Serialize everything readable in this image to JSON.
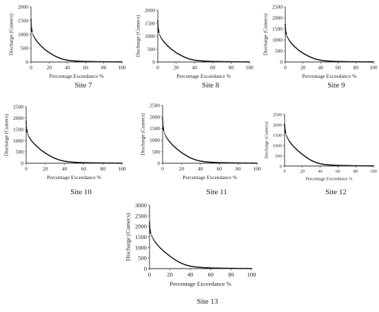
{
  "chart_data": [
    {
      "type": "line",
      "caption": "Site 7",
      "xlabel": "Percentage Exceedance %",
      "ylabel": "Discharge (Cumecs)",
      "xlim": [
        0,
        100
      ],
      "ylim": [
        0,
        2000
      ],
      "xticks": [
        0,
        20,
        40,
        60,
        80,
        100
      ],
      "yticks": [
        0,
        500,
        1000,
        1500,
        2000
      ],
      "series": [
        {
          "color": "#111111",
          "x": [
            0,
            0.5,
            1,
            2,
            3,
            5,
            7,
            10,
            15,
            20,
            25,
            30,
            35,
            40,
            45,
            50,
            55,
            60,
            70,
            80,
            90,
            100
          ],
          "values": [
            1550,
            1250,
            1120,
            1000,
            930,
            820,
            730,
            620,
            460,
            340,
            240,
            160,
            100,
            65,
            45,
            32,
            24,
            18,
            12,
            8,
            5,
            2
          ]
        }
      ]
    },
    {
      "type": "line",
      "caption": "Site 8",
      "xlabel": "Percentage Exceedance %",
      "ylabel": "Discharge (Cumecs)",
      "xlim": [
        0,
        100
      ],
      "ylim": [
        0,
        2000
      ],
      "xticks": [
        0,
        20,
        40,
        60,
        80,
        100
      ],
      "yticks": [
        0,
        500,
        1000,
        1500,
        2000
      ],
      "series": [
        {
          "color": "#111111",
          "x": [
            0,
            0.5,
            1,
            2,
            3,
            5,
            7,
            10,
            15,
            20,
            25,
            30,
            35,
            40,
            45,
            50,
            55,
            60,
            70,
            80,
            90,
            100
          ],
          "values": [
            1600,
            1300,
            1170,
            1050,
            980,
            860,
            770,
            650,
            490,
            360,
            260,
            175,
            110,
            72,
            50,
            36,
            27,
            20,
            13,
            9,
            6,
            2
          ]
        }
      ]
    },
    {
      "type": "line",
      "caption": "Site 9",
      "xlabel": "Percentage Exceedance %",
      "ylabel": "Discharge (Cumecs)",
      "xlim": [
        0,
        100
      ],
      "ylim": [
        0,
        2500
      ],
      "xticks": [
        0,
        20,
        40,
        60,
        80,
        100
      ],
      "yticks": [
        0,
        500,
        1000,
        1500,
        2000,
        2500
      ],
      "series": [
        {
          "color": "#111111",
          "x": [
            0,
            0.5,
            1,
            2,
            3,
            5,
            7,
            10,
            15,
            20,
            25,
            30,
            35,
            40,
            45,
            50,
            55,
            60,
            70,
            80,
            90,
            100
          ],
          "values": [
            1700,
            1400,
            1280,
            1160,
            1080,
            950,
            850,
            720,
            540,
            400,
            290,
            195,
            125,
            80,
            56,
            40,
            30,
            22,
            14,
            10,
            6,
            2
          ]
        }
      ]
    },
    {
      "type": "line",
      "caption": "Site 10",
      "xlabel": "Percentage Exceedance %",
      "ylabel": "Discharge (Cumecs)",
      "xlim": [
        0,
        100
      ],
      "ylim": [
        0,
        2500
      ],
      "xticks": [
        0,
        20,
        40,
        60,
        80,
        100
      ],
      "yticks": [
        0,
        500,
        1000,
        1500,
        2000,
        2500
      ],
      "series": [
        {
          "color": "#111111",
          "x": [
            0,
            0.5,
            1,
            2,
            3,
            5,
            7,
            10,
            15,
            20,
            25,
            30,
            35,
            40,
            45,
            50,
            55,
            60,
            70,
            80,
            90,
            100
          ],
          "values": [
            1850,
            1500,
            1380,
            1250,
            1160,
            1030,
            920,
            790,
            600,
            450,
            320,
            215,
            140,
            90,
            62,
            44,
            33,
            25,
            16,
            11,
            7,
            2
          ]
        }
      ]
    },
    {
      "type": "line",
      "caption": "Site 11",
      "xlabel": "Percentage Exceedance %",
      "ylabel": "Discharge (Cumecs)",
      "xlim": [
        0,
        100
      ],
      "ylim": [
        0,
        2500
      ],
      "xticks": [
        0,
        20,
        40,
        60,
        80,
        100
      ],
      "yticks": [
        0,
        500,
        1000,
        1500,
        2000,
        2500
      ],
      "series": [
        {
          "color": "#111111",
          "x": [
            0,
            0.5,
            1,
            2,
            3,
            5,
            7,
            10,
            15,
            20,
            25,
            30,
            35,
            40,
            45,
            50,
            55,
            60,
            70,
            80,
            90,
            100
          ],
          "values": [
            1950,
            1580,
            1440,
            1300,
            1200,
            1060,
            950,
            810,
            620,
            460,
            330,
            220,
            145,
            92,
            64,
            46,
            34,
            26,
            17,
            11,
            7,
            2
          ]
        }
      ]
    },
    {
      "type": "line",
      "caption": "Site 12",
      "xlabel": "Percentage Exceedance %",
      "ylabel": "Discharge (Cumecs)",
      "xlim": [
        0,
        100
      ],
      "ylim": [
        0,
        2500
      ],
      "xticks": [
        0,
        20,
        40,
        60,
        80,
        100
      ],
      "yticks": [
        0,
        500,
        1000,
        1500,
        2000,
        2500
      ],
      "series": [
        {
          "color": "#111111",
          "x": [
            0,
            0.5,
            1,
            2,
            3,
            5,
            7,
            10,
            15,
            20,
            25,
            30,
            35,
            40,
            45,
            50,
            55,
            60,
            70,
            80,
            90,
            100
          ],
          "values": [
            2000,
            1750,
            1620,
            1480,
            1380,
            1220,
            1100,
            950,
            740,
            560,
            400,
            270,
            175,
            110,
            75,
            54,
            40,
            30,
            19,
            12,
            8,
            3
          ]
        }
      ]
    },
    {
      "type": "line",
      "caption": "Site 13",
      "xlabel": "Percentage Exceedance %",
      "ylabel": "Discharge (Cumecs)",
      "xlim": [
        0,
        100
      ],
      "ylim": [
        0,
        3000
      ],
      "xticks": [
        0,
        20,
        40,
        60,
        80,
        100
      ],
      "yticks": [
        0,
        500,
        1000,
        1500,
        2000,
        2500,
        3000
      ],
      "series": [
        {
          "color": "#111111",
          "x": [
            0,
            0.5,
            1,
            2,
            3,
            5,
            7,
            10,
            15,
            20,
            25,
            30,
            35,
            40,
            45,
            50,
            55,
            60,
            70,
            80,
            90,
            100
          ],
          "values": [
            2200,
            1850,
            1700,
            1560,
            1460,
            1300,
            1170,
            1000,
            780,
            590,
            420,
            280,
            180,
            115,
            80,
            57,
            42,
            32,
            20,
            13,
            8,
            3
          ]
        }
      ]
    }
  ]
}
